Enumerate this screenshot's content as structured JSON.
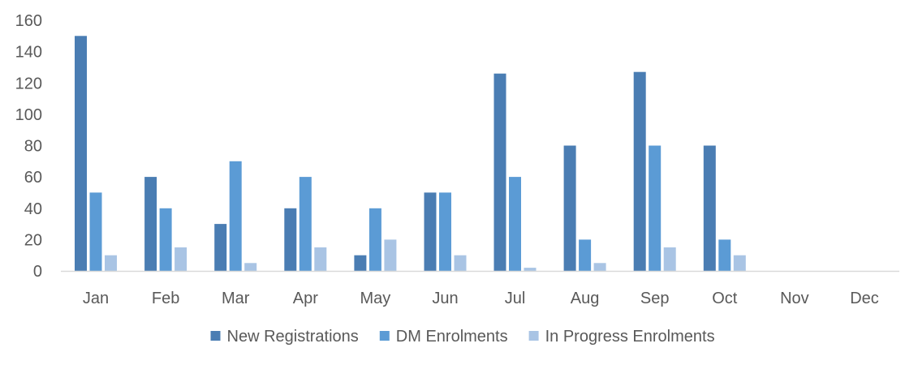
{
  "chart_data": {
    "type": "bar",
    "categories": [
      "Jan",
      "Feb",
      "Mar",
      "Apr",
      "May",
      "Jun",
      "Jul",
      "Aug",
      "Sep",
      "Oct",
      "Nov",
      "Dec"
    ],
    "series": [
      {
        "name": "New Registrations",
        "color": "#4a7db3",
        "values": [
          150,
          60,
          30,
          40,
          10,
          50,
          126,
          80,
          127,
          80,
          null,
          null
        ]
      },
      {
        "name": "DM Enrolments",
        "color": "#5b9bd5",
        "values": [
          50,
          40,
          70,
          60,
          40,
          50,
          60,
          20,
          80,
          20,
          null,
          null
        ]
      },
      {
        "name": "In Progress Enrolments",
        "color": "#a9c4e4",
        "values": [
          10,
          15,
          5,
          15,
          20,
          10,
          2,
          5,
          15,
          10,
          null,
          null
        ]
      }
    ],
    "ylim": [
      0,
      160
    ],
    "yticks": [
      "0",
      "20",
      "40",
      "60",
      "80",
      "100",
      "120",
      "140",
      "160"
    ],
    "grid": false,
    "legend_position": "bottom",
    "axis_color": "#d9d9d9",
    "text_color": "#595959"
  }
}
